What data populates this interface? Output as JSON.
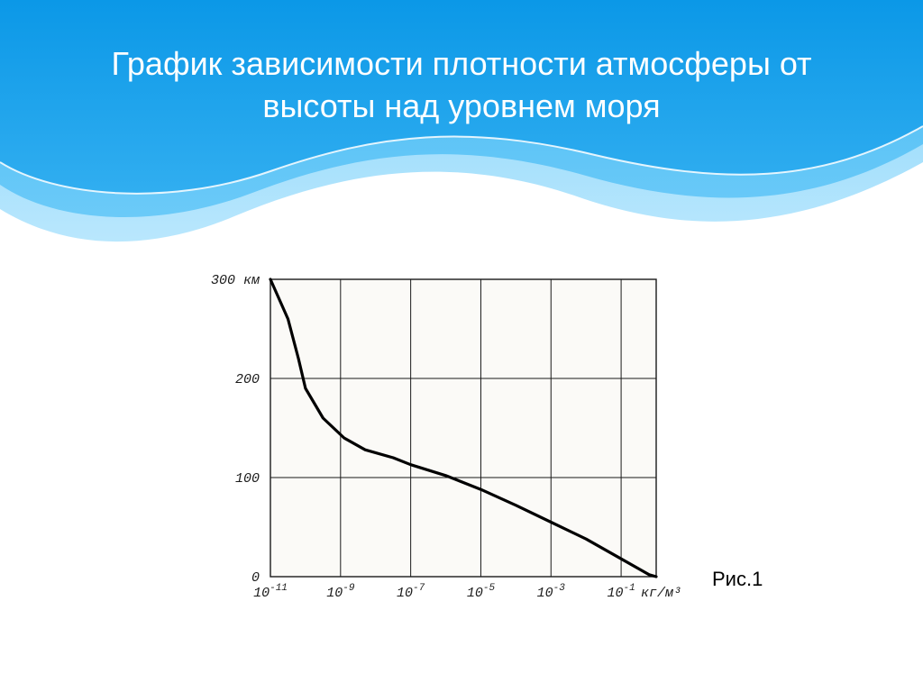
{
  "slide": {
    "title": "График зависимости плотности атмосферы от высоты над уровнем моря",
    "caption": "Рис.1",
    "title_color": "#ffffff",
    "title_fontsize": 36,
    "caption_fontsize": 22
  },
  "banner": {
    "top_fill": "#0b98e7",
    "mid_fill": "#3cb6f3",
    "bottom_fill": "#7dd1fb",
    "line_color": "#ffffff"
  },
  "chart": {
    "type": "line",
    "x_scale": "log",
    "y_scale": "linear",
    "paper_bg": "#fbfaf7",
    "frame_color": "#1a1a1a",
    "grid_color": "#1a1a1a",
    "curve_color": "#000000",
    "curve_width": 3.2,
    "frame_width": 1.4,
    "grid_width": 1.0,
    "y_unit_label": "300 км",
    "y_ticks": [
      {
        "v": 0,
        "label": "0"
      },
      {
        "v": 100,
        "label": "100"
      },
      {
        "v": 200,
        "label": "200"
      },
      {
        "v": 300,
        "label": ""
      }
    ],
    "x_ticks_exp": [
      -11,
      -9,
      -7,
      -5,
      -3,
      -1
    ],
    "x_unit_label": "кг/м³",
    "x_tick_prefix": "10",
    "ylim": [
      0,
      300
    ],
    "x_exp_lim": [
      -11,
      0
    ],
    "curve_points_exp_alt": [
      [
        -11,
        300
      ],
      [
        -10.5,
        260
      ],
      [
        -10.2,
        220
      ],
      [
        -10.0,
        190
      ],
      [
        -9.5,
        160
      ],
      [
        -8.9,
        140
      ],
      [
        -8.3,
        128
      ],
      [
        -7.5,
        120
      ],
      [
        -7.0,
        113
      ],
      [
        -6.0,
        102
      ],
      [
        -5.0,
        88
      ],
      [
        -4.0,
        72
      ],
      [
        -3.0,
        55
      ],
      [
        -2.0,
        38
      ],
      [
        -1.0,
        18
      ],
      [
        -0.2,
        2
      ],
      [
        0.0,
        0
      ]
    ],
    "label_fontsize": 15
  }
}
